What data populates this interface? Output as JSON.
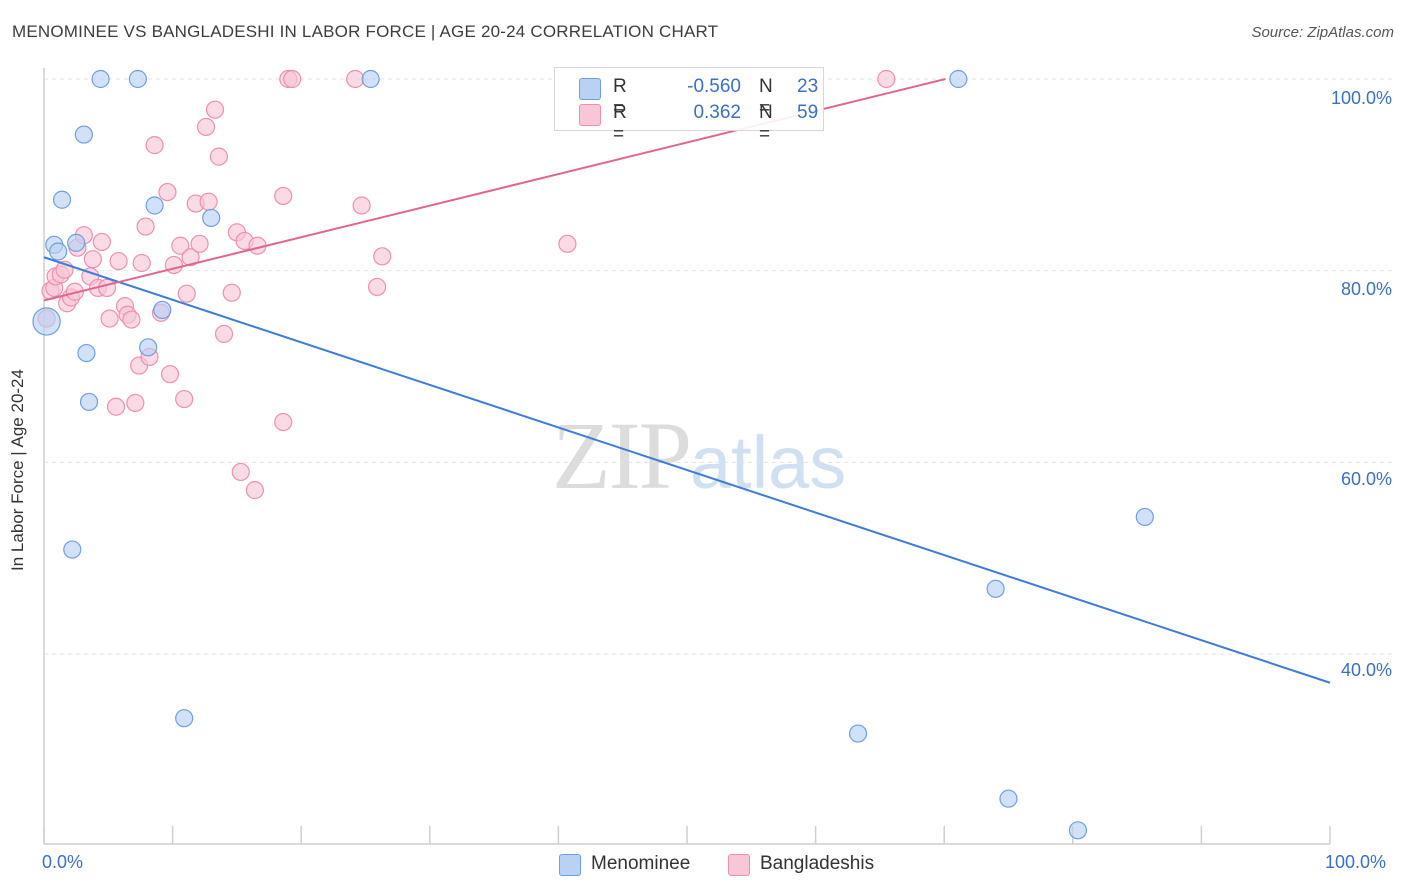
{
  "title": "MENOMINEE VS BANGLADESHI IN LABOR FORCE | AGE 20-24 CORRELATION CHART",
  "source": "Source: ZipAtlas.com",
  "watermark": {
    "zip": "ZIP",
    "atlas": "atlas"
  },
  "legend_top": [
    {
      "r_label": "R =",
      "r_value": "-0.560",
      "n_label": "N =",
      "n_value": "23"
    },
    {
      "r_label": "R =",
      "r_value": "0.362",
      "n_label": "N =",
      "n_value": "59"
    }
  ],
  "colors": {
    "menominee_fill": "#b9d1f2",
    "menominee_stroke": "#6f9fe0",
    "menominee_line": "#3b7dd8",
    "bangladeshi_fill": "#f8c6d6",
    "bangladeshi_stroke": "#ee8fae",
    "bangladeshi_line": "#e0668f",
    "accent_text": "#3a6fc7",
    "grid": "#e2e2e2"
  },
  "chart_data": {
    "type": "scatter",
    "title": "MENOMINEE VS BANGLADESHI IN LABOR FORCE | AGE 20-24 CORRELATION CHART",
    "xlabel": "",
    "ylabel": "In Labor Force | Age 20-24",
    "xlim": [
      0,
      100
    ],
    "ylim": [
      20,
      102
    ],
    "x_tick_labels": [
      "0.0%",
      "100.0%"
    ],
    "y_ticks": [
      40,
      60,
      80,
      100
    ],
    "y_tick_labels": [
      "40.0%",
      "60.0%",
      "80.0%",
      "100.0%"
    ],
    "grid": true,
    "legend_position": "bottom",
    "series": [
      {
        "name": "Menominee",
        "r": -0.56,
        "n": 23,
        "trend": {
          "x": [
            0,
            100
          ],
          "y": [
            81.4,
            37.0
          ]
        },
        "points": [
          [
            4.4,
            100
          ],
          [
            7.3,
            100
          ],
          [
            25.4,
            100
          ],
          [
            71.1,
            100
          ],
          [
            3.1,
            94.2
          ],
          [
            1.4,
            87.4
          ],
          [
            8.6,
            86.8
          ],
          [
            13.0,
            85.5
          ],
          [
            0.8,
            82.7
          ],
          [
            1.1,
            82.0
          ],
          [
            2.5,
            82.9
          ],
          [
            9.2,
            75.9
          ],
          [
            0.2,
            74.7
          ],
          [
            3.3,
            71.4
          ],
          [
            8.1,
            72.0
          ],
          [
            3.5,
            66.3
          ],
          [
            2.2,
            50.9
          ],
          [
            85.6,
            54.3
          ],
          [
            74.0,
            46.8
          ],
          [
            10.9,
            33.3
          ],
          [
            63.3,
            31.7
          ],
          [
            75.0,
            24.9
          ],
          [
            80.4,
            21.6
          ]
        ],
        "point_sizes": [
          1,
          1,
          1,
          1,
          1,
          1,
          1,
          1,
          1,
          1,
          1,
          1,
          1.6,
          1,
          1,
          1,
          1,
          1,
          1,
          1,
          1,
          1,
          1
        ]
      },
      {
        "name": "Bangladeshis",
        "r": 0.362,
        "n": 59,
        "trend": {
          "x": [
            0,
            70.1
          ],
          "y": [
            76.9,
            100
          ]
        },
        "points": [
          [
            0.2,
            75.0
          ],
          [
            0.5,
            77.9
          ],
          [
            0.8,
            78.2
          ],
          [
            0.9,
            79.4
          ],
          [
            1.3,
            79.6
          ],
          [
            1.6,
            80.1
          ],
          [
            1.8,
            76.6
          ],
          [
            2.1,
            77.2
          ],
          [
            2.4,
            77.8
          ],
          [
            2.6,
            82.4
          ],
          [
            3.1,
            83.7
          ],
          [
            3.6,
            79.4
          ],
          [
            3.8,
            81.2
          ],
          [
            4.2,
            78.2
          ],
          [
            4.5,
            83.0
          ],
          [
            4.9,
            78.2
          ],
          [
            5.1,
            75.0
          ],
          [
            5.6,
            65.8
          ],
          [
            5.8,
            81.0
          ],
          [
            6.3,
            76.3
          ],
          [
            6.5,
            75.4
          ],
          [
            6.8,
            74.9
          ],
          [
            7.1,
            66.2
          ],
          [
            7.4,
            70.1
          ],
          [
            7.6,
            80.8
          ],
          [
            7.9,
            84.6
          ],
          [
            8.2,
            71.0
          ],
          [
            8.6,
            93.1
          ],
          [
            9.1,
            75.6
          ],
          [
            9.6,
            88.2
          ],
          [
            9.8,
            69.2
          ],
          [
            10.1,
            80.6
          ],
          [
            10.6,
            82.6
          ],
          [
            10.9,
            66.6
          ],
          [
            11.1,
            77.6
          ],
          [
            11.4,
            81.4
          ],
          [
            11.8,
            87.0
          ],
          [
            12.1,
            82.8
          ],
          [
            12.6,
            95.0
          ],
          [
            12.8,
            87.2
          ],
          [
            13.3,
            96.8
          ],
          [
            13.6,
            91.9
          ],
          [
            14.0,
            73.4
          ],
          [
            14.6,
            77.7
          ],
          [
            15.0,
            84.0
          ],
          [
            15.3,
            59.0
          ],
          [
            15.6,
            83.1
          ],
          [
            16.4,
            57.1
          ],
          [
            16.6,
            82.6
          ],
          [
            19.0,
            100
          ],
          [
            18.6,
            87.8
          ],
          [
            18.6,
            64.2
          ],
          [
            19.3,
            100
          ],
          [
            24.2,
            100
          ],
          [
            24.7,
            86.8
          ],
          [
            25.9,
            78.3
          ],
          [
            26.3,
            81.5
          ],
          [
            40.7,
            82.8
          ],
          [
            65.5,
            100
          ]
        ]
      }
    ]
  }
}
